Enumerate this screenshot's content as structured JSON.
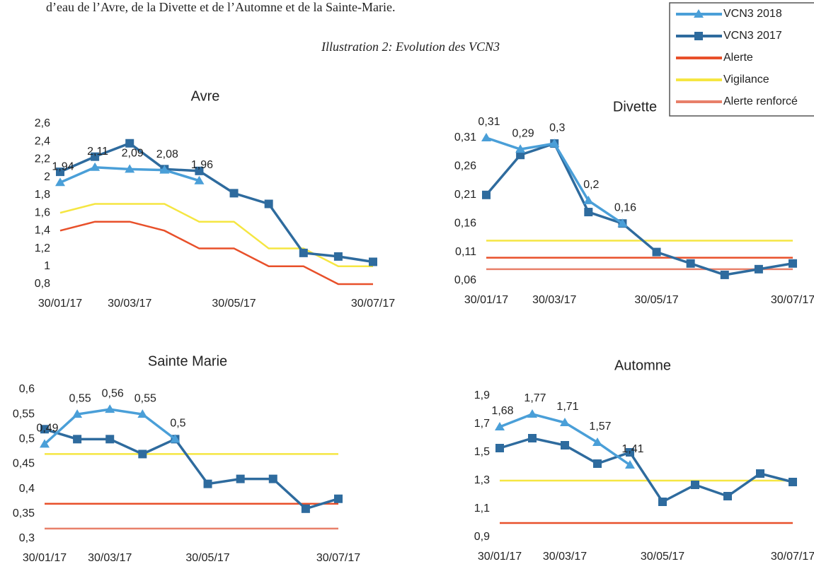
{
  "document": {
    "text": "d’eau de l’Avre, de la Divette et de l’Automne et de la Sainte-Marie.",
    "caption": "Illustration 2: Evolution des VCN3"
  },
  "chart_data": [
    {
      "type": "line",
      "title": "Avre",
      "categories": [
        "30/01/17",
        null,
        "30/03/17",
        null,
        null,
        "30/05/17",
        null,
        null,
        null,
        "30/07/17"
      ],
      "ylim": [
        0.8,
        2.6
      ],
      "yticks": [
        {
          "value": 0.8,
          "label": "0,8"
        },
        1,
        {
          "value": 1.2,
          "label": "1,2"
        },
        {
          "value": 1.4,
          "label": "1,4"
        },
        {
          "value": 1.6,
          "label": "1,6"
        },
        {
          "value": 1.8,
          "label": "1,8"
        },
        2,
        {
          "value": 2.2,
          "label": "2,2"
        },
        {
          "value": 2.4,
          "label": "2,4"
        },
        {
          "value": 2.6,
          "label": "2,6"
        }
      ],
      "series": [
        {
          "name": "VCN3 2018",
          "color": "#4a9fd8",
          "values": [
            1.94,
            2.11,
            2.09,
            2.08,
            1.96,
            null,
            null,
            null,
            null,
            null
          ],
          "value_labels": [
            "1,94",
            "2,11",
            "2,09",
            "2,08",
            "1,96",
            null,
            null,
            null,
            null,
            null
          ]
        },
        {
          "name": "VCN3 2017",
          "color": "#2e6b9e",
          "values": [
            2.06,
            2.23,
            2.38,
            2.09,
            2.07,
            1.82,
            1.7,
            1.15,
            1.11,
            1.05
          ]
        },
        {
          "name": "Alerte",
          "color": "#e8502a",
          "values": [
            1.4,
            1.5,
            1.5,
            1.4,
            1.2,
            1.2,
            1.0,
            1.0,
            0.8,
            0.8
          ]
        },
        {
          "name": "Vigilance",
          "color": "#f5e642",
          "values": [
            1.6,
            1.7,
            1.7,
            1.7,
            1.5,
            1.5,
            1.2,
            1.2,
            1.0,
            1.0
          ]
        }
      ]
    },
    {
      "type": "line",
      "title": "Divette",
      "categories": [
        "30/01/17",
        null,
        "30/03/17",
        null,
        null,
        "30/05/17",
        null,
        null,
        null,
        "30/07/17"
      ],
      "ylim": [
        0.06,
        0.31
      ],
      "yticks": [
        {
          "value": 0.06,
          "label": "0,06"
        },
        {
          "value": 0.11,
          "label": "0,11"
        },
        {
          "value": 0.16,
          "label": "0,16"
        },
        {
          "value": 0.21,
          "label": "0,21"
        },
        {
          "value": 0.26,
          "label": "0,26"
        },
        {
          "value": 0.31,
          "label": "0,31"
        }
      ],
      "series": [
        {
          "name": "VCN3 2018",
          "color": "#4a9fd8",
          "values": [
            0.31,
            0.29,
            0.3,
            0.2,
            0.16,
            null,
            null,
            null,
            null,
            null
          ],
          "value_labels": [
            "0,31",
            "0,29",
            "0,3",
            "0,2",
            "0,16",
            null,
            null,
            null,
            null,
            null
          ]
        },
        {
          "name": "VCN3 2017",
          "color": "#2e6b9e",
          "values": [
            0.21,
            0.28,
            0.3,
            0.18,
            0.16,
            0.11,
            0.09,
            0.07,
            0.08,
            0.09
          ]
        },
        {
          "name": "Alerte",
          "color": "#e8502a",
          "values": [
            0.1,
            0.1,
            0.1,
            0.1,
            0.1,
            0.1,
            0.1,
            0.1,
            0.1,
            0.1
          ]
        },
        {
          "name": "Vigilance",
          "color": "#f5e642",
          "values": [
            0.13,
            0.13,
            0.13,
            0.13,
            0.13,
            0.13,
            0.13,
            0.13,
            0.13,
            0.13
          ]
        },
        {
          "name": "Alerte renforcé",
          "color": "#e8806a",
          "values": [
            0.08,
            0.08,
            0.08,
            0.08,
            0.08,
            0.08,
            0.08,
            0.08,
            0.08,
            0.08
          ]
        }
      ]
    },
    {
      "type": "line",
      "title": "Sainte Marie",
      "categories": [
        "30/01/17",
        null,
        "30/03/17",
        null,
        null,
        "30/05/17",
        null,
        null,
        null,
        "30/07/17"
      ],
      "ylim": [
        0.3,
        0.6
      ],
      "yticks": [
        {
          "value": 0.3,
          "label": "0,3"
        },
        {
          "value": 0.35,
          "label": "0,35"
        },
        {
          "value": 0.4,
          "label": "0,4"
        },
        {
          "value": 0.45,
          "label": "0,45"
        },
        {
          "value": 0.5,
          "label": "0,5"
        },
        {
          "value": 0.55,
          "label": "0,55"
        },
        {
          "value": 0.6,
          "label": "0,6"
        }
      ],
      "series": [
        {
          "name": "VCN3 2018",
          "color": "#4a9fd8",
          "values": [
            0.49,
            0.55,
            0.56,
            0.55,
            0.5,
            null,
            null,
            null,
            null,
            null
          ],
          "value_labels": [
            "0,49",
            "0,55",
            "0,56",
            "0,55",
            "0,5",
            null,
            null,
            null,
            null,
            null
          ]
        },
        {
          "name": "VCN3 2017",
          "color": "#2e6b9e",
          "values": [
            0.52,
            0.5,
            0.5,
            0.47,
            0.5,
            0.41,
            0.42,
            0.42,
            0.36,
            0.38
          ]
        },
        {
          "name": "Alerte",
          "color": "#e8502a",
          "values": [
            0.37,
            0.37,
            0.37,
            0.37,
            0.37,
            0.37,
            0.37,
            0.37,
            0.37,
            0.37
          ]
        },
        {
          "name": "Vigilance",
          "color": "#f5e642",
          "values": [
            0.47,
            0.47,
            0.47,
            0.47,
            0.47,
            0.47,
            0.47,
            0.47,
            0.47,
            0.47
          ]
        },
        {
          "name": "Alerte renforcé",
          "color": "#e8806a",
          "values": [
            0.32,
            0.32,
            0.32,
            0.32,
            0.32,
            0.32,
            0.32,
            0.32,
            0.32,
            0.32
          ]
        }
      ]
    },
    {
      "type": "line",
      "title": "Automne",
      "categories": [
        "30/01/17",
        null,
        "30/03/17",
        null,
        null,
        "30/05/17",
        null,
        null,
        null,
        "30/07/17"
      ],
      "ylim": [
        0.9,
        1.9
      ],
      "yticks": [
        {
          "value": 0.9,
          "label": "0,9"
        },
        {
          "value": 1.1,
          "label": "1,1"
        },
        {
          "value": 1.3,
          "label": "1,3"
        },
        {
          "value": 1.5,
          "label": "1,5"
        },
        {
          "value": 1.7,
          "label": "1,7"
        },
        {
          "value": 1.9,
          "label": "1,9"
        }
      ],
      "series": [
        {
          "name": "VCN3 2018",
          "color": "#4a9fd8",
          "values": [
            1.68,
            1.77,
            1.71,
            1.57,
            1.41,
            null,
            null,
            null,
            null,
            null
          ],
          "value_labels": [
            "1,68",
            "1,77",
            "1,71",
            "1,57",
            "1,41",
            null,
            null,
            null,
            null,
            null
          ]
        },
        {
          "name": "VCN3 2017",
          "color": "#2e6b9e",
          "values": [
            1.53,
            1.6,
            1.55,
            1.42,
            1.5,
            1.15,
            1.27,
            1.19,
            1.35,
            1.29
          ]
        },
        {
          "name": "Alerte",
          "color": "#e8502a",
          "values": [
            1.0,
            1.0,
            1.0,
            1.0,
            1.0,
            1.0,
            1.0,
            1.0,
            1.0,
            1.0
          ]
        },
        {
          "name": "Vigilance",
          "color": "#f5e642",
          "values": [
            1.3,
            1.3,
            1.3,
            1.3,
            1.3,
            1.3,
            1.3,
            1.3,
            1.3,
            1.3
          ]
        }
      ]
    }
  ]
}
